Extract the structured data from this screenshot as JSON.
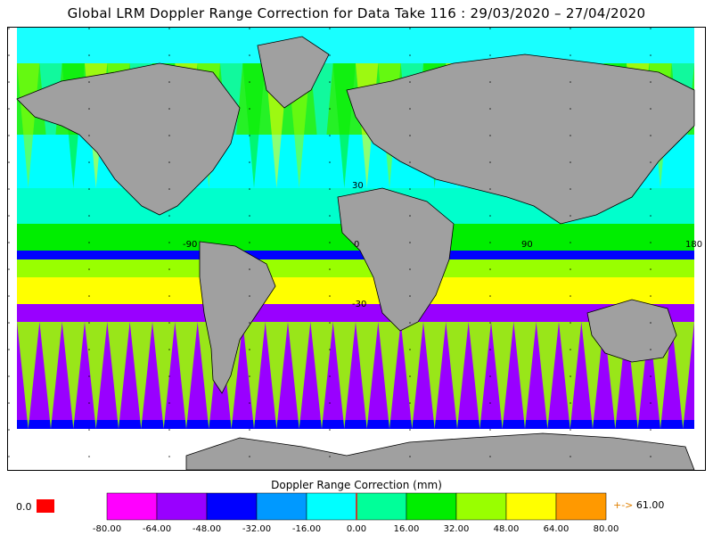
{
  "title": "Global LRM Doppler Range Correction for Data Take 116 : 29/03/2020 – 27/04/2020",
  "map": {
    "lon_labels": [
      "-90",
      "0",
      "90",
      "180"
    ],
    "lat_labels": [
      "30",
      "-30"
    ]
  },
  "colorbar": {
    "title": "Doppler Range Correction (mm)",
    "ticks": [
      "-80.00",
      "-64.00",
      "-48.00",
      "-32.00",
      "-16.00",
      "0.00",
      "16.00",
      "32.00",
      "48.00",
      "64.00",
      "80.00"
    ],
    "colors": [
      "#ff00ff",
      "#9900ff",
      "#0000ff",
      "#0099ff",
      "#00ffff",
      "#00ff99",
      "#00ee00",
      "#99ff00",
      "#ffff00",
      "#ff9900"
    ],
    "min_label": "0.0",
    "min_color": "#ff0000",
    "max_arrow": "+->",
    "max_value": "61.00"
  },
  "colors": {
    "land": "#a0a0a0",
    "frame": "#000000"
  }
}
